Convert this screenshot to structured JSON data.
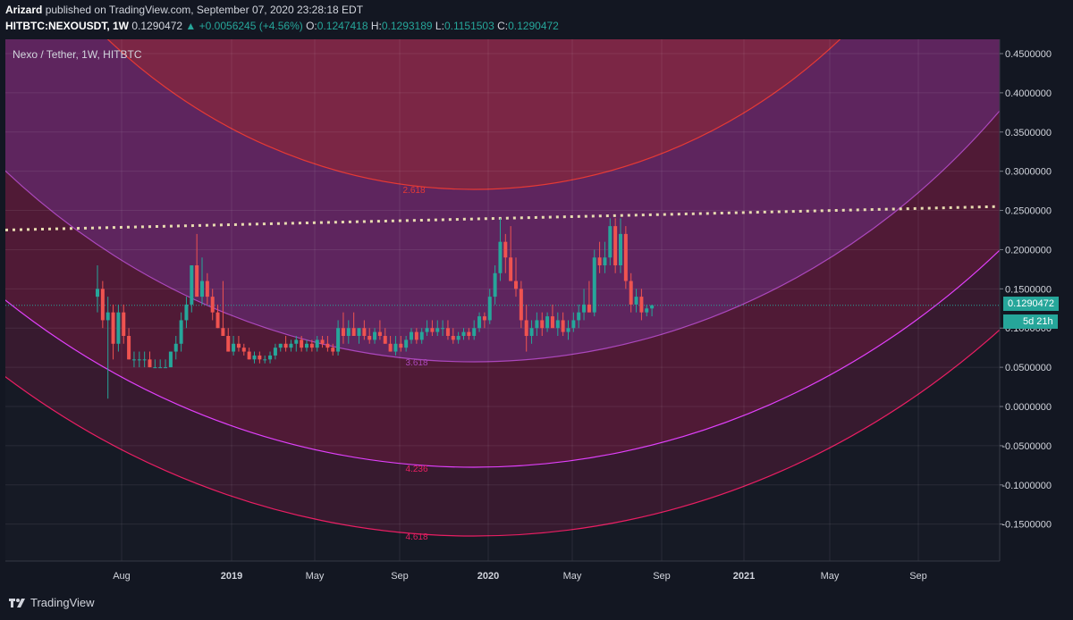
{
  "header": {
    "author": "Arizard",
    "published": "published on TradingView.com, September 07, 2020 23:28:18 EDT",
    "symbol_line": "HITBTC:NEXOUSDT, 1W",
    "last": "0.1290472",
    "change": "+0.0056245 (+4.56%)",
    "o_label": "O:",
    "o": "0.1247418",
    "h_label": "H:",
    "h": "0.1293189",
    "l_label": "L:",
    "l": "0.1151503",
    "c_label": "C:",
    "c": "0.1290472"
  },
  "legend": "Nexo / Tether, 1W, HITBTC",
  "price_tag": "0.1290472",
  "countdown_tag": "5d 21h",
  "footer": {
    "brand": "TradingView"
  },
  "colors": {
    "up": "#26a69a",
    "down": "#ef5350",
    "bg": "#131722"
  },
  "chart_data": {
    "type": "candlestick",
    "title": "Nexo / Tether, 1W, HITBTC",
    "ylim": [
      -0.2,
      0.47
    ],
    "y_ticks": [
      "0.4500000",
      "0.4000000",
      "0.3500000",
      "0.3000000",
      "0.2500000",
      "0.2000000",
      "0.1500000",
      "0.1000000",
      "0.0500000",
      "0.0000000",
      "-0.0500000",
      "-0.1000000",
      "-0.1500000"
    ],
    "x_ticks": [
      "Aug",
      "2019",
      "May",
      "Sep",
      "2020",
      "May",
      "Sep",
      "2021",
      "May",
      "Sep"
    ],
    "fib_levels": [
      "2.618",
      "3.618",
      "4.236",
      "4.618"
    ],
    "resistance_line": {
      "start": 0.225,
      "end": 0.255,
      "style": "dotted"
    },
    "last_price": 0.1290472,
    "candles": [
      [
        0.14,
        0.18,
        0.12,
        0.15
      ],
      [
        0.15,
        0.16,
        0.1,
        0.11
      ],
      [
        0.11,
        0.14,
        0.01,
        0.12
      ],
      [
        0.12,
        0.13,
        0.06,
        0.08
      ],
      [
        0.08,
        0.13,
        0.07,
        0.12
      ],
      [
        0.12,
        0.13,
        0.08,
        0.09
      ],
      [
        0.09,
        0.1,
        0.06,
        0.06
      ],
      [
        0.06,
        0.07,
        0.05,
        0.06
      ],
      [
        0.06,
        0.07,
        0.05,
        0.06
      ],
      [
        0.06,
        0.07,
        0.05,
        0.06
      ],
      [
        0.06,
        0.07,
        0.05,
        0.05
      ],
      [
        0.05,
        0.06,
        0.05,
        0.05
      ],
      [
        0.05,
        0.06,
        0.05,
        0.05
      ],
      [
        0.05,
        0.06,
        0.05,
        0.05
      ],
      [
        0.05,
        0.07,
        0.05,
        0.07
      ],
      [
        0.07,
        0.09,
        0.06,
        0.08
      ],
      [
        0.08,
        0.12,
        0.07,
        0.11
      ],
      [
        0.11,
        0.14,
        0.1,
        0.13
      ],
      [
        0.13,
        0.18,
        0.12,
        0.18
      ],
      [
        0.18,
        0.22,
        0.14,
        0.14
      ],
      [
        0.14,
        0.19,
        0.13,
        0.16
      ],
      [
        0.16,
        0.17,
        0.13,
        0.14
      ],
      [
        0.14,
        0.15,
        0.11,
        0.12
      ],
      [
        0.12,
        0.13,
        0.1,
        0.1
      ],
      [
        0.1,
        0.16,
        0.09,
        0.09
      ],
      [
        0.09,
        0.1,
        0.07,
        0.07
      ],
      [
        0.07,
        0.09,
        0.065,
        0.08
      ],
      [
        0.08,
        0.09,
        0.07,
        0.075
      ],
      [
        0.075,
        0.08,
        0.065,
        0.07
      ],
      [
        0.07,
        0.075,
        0.06,
        0.06
      ],
      [
        0.06,
        0.07,
        0.055,
        0.065
      ],
      [
        0.065,
        0.07,
        0.055,
        0.06
      ],
      [
        0.06,
        0.065,
        0.055,
        0.06
      ],
      [
        0.06,
        0.07,
        0.055,
        0.065
      ],
      [
        0.065,
        0.08,
        0.06,
        0.075
      ],
      [
        0.075,
        0.08,
        0.07,
        0.08
      ],
      [
        0.08,
        0.09,
        0.07,
        0.075
      ],
      [
        0.075,
        0.085,
        0.07,
        0.08
      ],
      [
        0.08,
        0.09,
        0.07,
        0.085
      ],
      [
        0.085,
        0.09,
        0.07,
        0.075
      ],
      [
        0.075,
        0.085,
        0.07,
        0.08
      ],
      [
        0.08,
        0.085,
        0.07,
        0.075
      ],
      [
        0.075,
        0.09,
        0.07,
        0.085
      ],
      [
        0.085,
        0.09,
        0.075,
        0.08
      ],
      [
        0.08,
        0.09,
        0.07,
        0.075
      ],
      [
        0.075,
        0.08,
        0.065,
        0.07
      ],
      [
        0.07,
        0.11,
        0.065,
        0.1
      ],
      [
        0.1,
        0.12,
        0.08,
        0.09
      ],
      [
        0.09,
        0.11,
        0.08,
        0.1
      ],
      [
        0.1,
        0.12,
        0.09,
        0.09
      ],
      [
        0.09,
        0.1,
        0.08,
        0.1
      ],
      [
        0.1,
        0.11,
        0.085,
        0.09
      ],
      [
        0.09,
        0.1,
        0.08,
        0.085
      ],
      [
        0.085,
        0.1,
        0.08,
        0.095
      ],
      [
        0.095,
        0.11,
        0.085,
        0.09
      ],
      [
        0.09,
        0.1,
        0.08,
        0.08
      ],
      [
        0.08,
        0.09,
        0.07,
        0.07
      ],
      [
        0.07,
        0.09,
        0.065,
        0.08
      ],
      [
        0.08,
        0.09,
        0.07,
        0.075
      ],
      [
        0.075,
        0.09,
        0.07,
        0.085
      ],
      [
        0.085,
        0.1,
        0.08,
        0.095
      ],
      [
        0.095,
        0.1,
        0.08,
        0.085
      ],
      [
        0.085,
        0.1,
        0.08,
        0.095
      ],
      [
        0.095,
        0.11,
        0.09,
        0.1
      ],
      [
        0.1,
        0.11,
        0.09,
        0.095
      ],
      [
        0.095,
        0.11,
        0.09,
        0.1
      ],
      [
        0.1,
        0.11,
        0.09,
        0.1
      ],
      [
        0.1,
        0.11,
        0.085,
        0.09
      ],
      [
        0.09,
        0.1,
        0.08,
        0.085
      ],
      [
        0.085,
        0.095,
        0.08,
        0.09
      ],
      [
        0.09,
        0.1,
        0.085,
        0.095
      ],
      [
        0.095,
        0.1,
        0.085,
        0.09
      ],
      [
        0.09,
        0.11,
        0.085,
        0.1
      ],
      [
        0.1,
        0.12,
        0.095,
        0.115
      ],
      [
        0.115,
        0.12,
        0.1,
        0.11
      ],
      [
        0.11,
        0.15,
        0.105,
        0.14
      ],
      [
        0.14,
        0.18,
        0.13,
        0.17
      ],
      [
        0.17,
        0.24,
        0.16,
        0.21
      ],
      [
        0.21,
        0.22,
        0.17,
        0.19
      ],
      [
        0.19,
        0.23,
        0.16,
        0.16
      ],
      [
        0.16,
        0.19,
        0.14,
        0.15
      ],
      [
        0.15,
        0.16,
        0.1,
        0.11
      ],
      [
        0.11,
        0.13,
        0.07,
        0.09
      ],
      [
        0.09,
        0.11,
        0.08,
        0.1
      ],
      [
        0.1,
        0.12,
        0.09,
        0.11
      ],
      [
        0.11,
        0.12,
        0.09,
        0.1
      ],
      [
        0.1,
        0.12,
        0.095,
        0.115
      ],
      [
        0.115,
        0.13,
        0.1,
        0.1
      ],
      [
        0.1,
        0.12,
        0.09,
        0.11
      ],
      [
        0.11,
        0.12,
        0.09,
        0.095
      ],
      [
        0.095,
        0.11,
        0.085,
        0.1
      ],
      [
        0.1,
        0.12,
        0.095,
        0.11
      ],
      [
        0.11,
        0.13,
        0.1,
        0.12
      ],
      [
        0.12,
        0.15,
        0.11,
        0.13
      ],
      [
        0.13,
        0.16,
        0.12,
        0.12
      ],
      [
        0.12,
        0.2,
        0.115,
        0.19
      ],
      [
        0.19,
        0.21,
        0.17,
        0.18
      ],
      [
        0.18,
        0.21,
        0.17,
        0.19
      ],
      [
        0.19,
        0.24,
        0.18,
        0.23
      ],
      [
        0.23,
        0.24,
        0.17,
        0.18
      ],
      [
        0.18,
        0.24,
        0.17,
        0.22
      ],
      [
        0.22,
        0.23,
        0.15,
        0.16
      ],
      [
        0.16,
        0.17,
        0.12,
        0.13
      ],
      [
        0.13,
        0.15,
        0.12,
        0.14
      ],
      [
        0.14,
        0.15,
        0.11,
        0.12
      ],
      [
        0.12,
        0.13,
        0.115,
        0.125
      ],
      [
        0.125,
        0.13,
        0.115,
        0.129
      ]
    ]
  }
}
